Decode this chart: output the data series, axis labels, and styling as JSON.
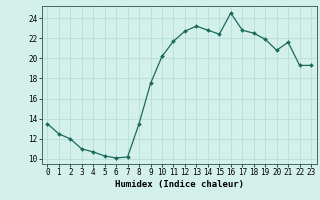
{
  "x": [
    0,
    1,
    2,
    3,
    4,
    5,
    6,
    7,
    8,
    9,
    10,
    11,
    12,
    13,
    14,
    15,
    16,
    17,
    18,
    19,
    20,
    21,
    22,
    23
  ],
  "y": [
    13.5,
    12.5,
    12.0,
    11.0,
    10.7,
    10.3,
    10.1,
    10.2,
    13.5,
    17.5,
    20.2,
    21.7,
    22.7,
    23.2,
    22.8,
    22.4,
    24.5,
    22.8,
    22.5,
    21.9,
    20.8,
    21.6,
    19.3,
    19.3
  ],
  "line_color": "#1a6b5a",
  "marker": "D",
  "marker_size": 2.0,
  "bg_color": "#d4f0eb",
  "grid_color": "#b8ddd8",
  "xlabel": "Humidex (Indice chaleur)",
  "xlim": [
    -0.5,
    23.5
  ],
  "ylim": [
    9.5,
    25.2
  ],
  "yticks": [
    10,
    12,
    14,
    16,
    18,
    20,
    22,
    24
  ],
  "xticks": [
    0,
    1,
    2,
    3,
    4,
    5,
    6,
    7,
    8,
    9,
    10,
    11,
    12,
    13,
    14,
    15,
    16,
    17,
    18,
    19,
    20,
    21,
    22,
    23
  ],
  "tick_fontsize": 5.5,
  "xlabel_fontsize": 6.5
}
